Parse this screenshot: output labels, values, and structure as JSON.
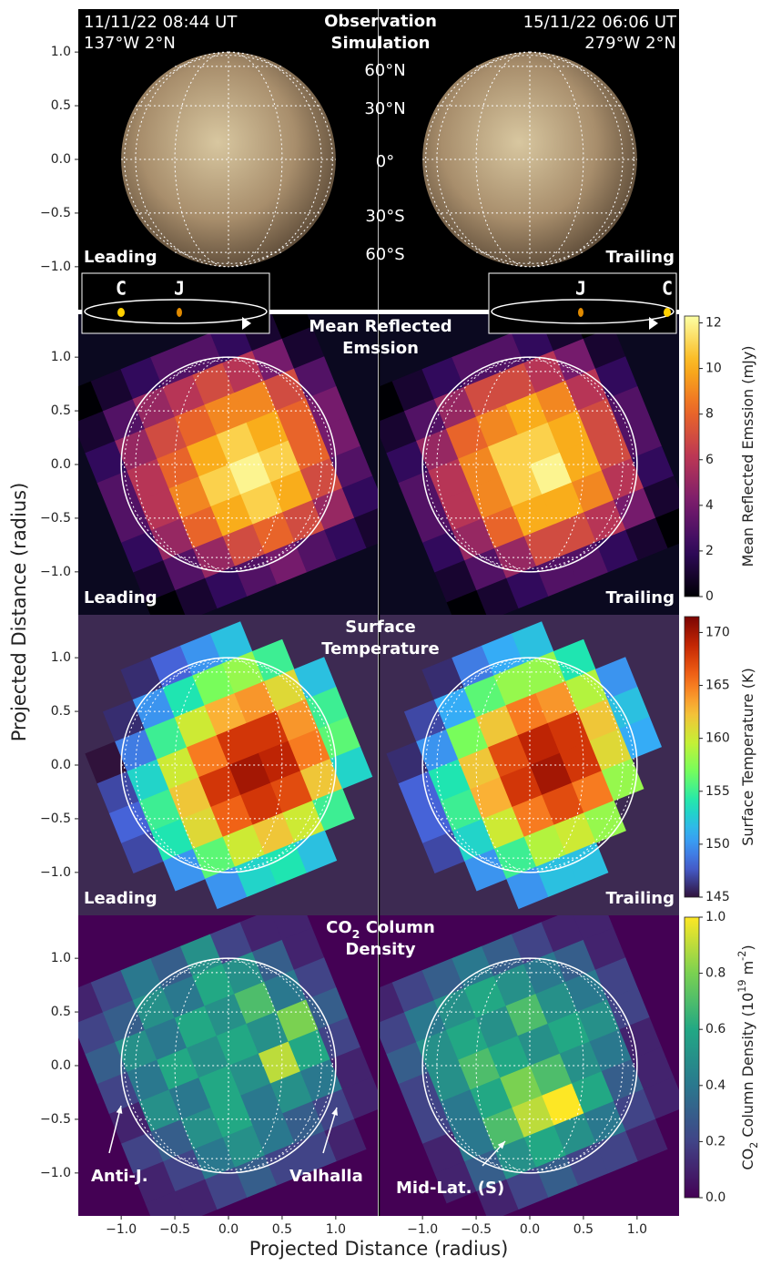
{
  "chart_data": {
    "type": "image-grid",
    "xlabel": "Projected Distance (radius)",
    "ylabel": "Projected Distance (radius)",
    "xlim": [
      -1.4,
      1.4
    ],
    "ylim": [
      -1.4,
      1.4
    ],
    "xticks": [
      {
        "value": -1,
        "label": "−1.0"
      },
      {
        "value": -0.5,
        "label": "−0.5"
      },
      {
        "value": 0,
        "label": "0.0"
      },
      {
        "value": 0.5,
        "label": "0.5"
      },
      {
        "value": 1,
        "label": "1.0"
      }
    ],
    "yticks": [
      {
        "value": -1,
        "label": "−1.0"
      },
      {
        "value": -0.5,
        "label": "−0.5"
      },
      {
        "value": 0,
        "label": "0.0"
      },
      {
        "value": 0.5,
        "label": "0.5"
      },
      {
        "value": 1,
        "label": "1.0"
      }
    ],
    "rows": [
      {
        "type": "image",
        "background": "#000000",
        "title_lines": [
          [
            {
              "text": "Observation"
            }
          ],
          [
            {
              "text": "Simulation"
            }
          ]
        ],
        "left_time": "11/11/22 08:44 UT",
        "left_coords": "137°W 2°N",
        "right_time": "15/11/22 06:06 UT",
        "right_coords": "279°W 2°N",
        "latitude_labels": [
          "60°N",
          "30°N",
          "0°",
          "30°S",
          "60°S"
        ],
        "panels": [
          {
            "label": "Leading",
            "inset": [
              "C",
              "J"
            ]
          },
          {
            "label": "Trailing",
            "inset": [
              "J",
              "C"
            ]
          }
        ]
      },
      {
        "type": "heatmap",
        "background": "#0b0920",
        "colormap": "inferno",
        "title_lines": [
          [
            {
              "text": "Mean Reflected"
            }
          ],
          [
            {
              "text": "Emssion"
            }
          ]
        ],
        "colorbar": {
          "label_parts": [
            {
              "text": "Mean Reflected Emssion (mJy)"
            }
          ],
          "lim": [
            0,
            12.3
          ],
          "ticks": [
            0,
            2,
            4,
            6,
            8,
            10,
            12
          ]
        },
        "panels": [
          {
            "label": "Leading",
            "values": [
              [
                0,
                1,
                2,
                3,
                3,
                2,
                1,
                0
              ],
              [
                1,
                3,
                5,
                6,
                7,
                6,
                4,
                1
              ],
              [
                2,
                5,
                7,
                8,
                9,
                9,
                7,
                3
              ],
              [
                3,
                6,
                8,
                10,
                11,
                10,
                8,
                4
              ],
              [
                3,
                6,
                9,
                11,
                12,
                11,
                8,
                4
              ],
              [
                2,
                5,
                8,
                10,
                11,
                10,
                7,
                3
              ],
              [
                1,
                3,
                5,
                7,
                8,
                7,
                5,
                2
              ],
              [
                0,
                1,
                2,
                3,
                4,
                3,
                2,
                1
              ]
            ]
          },
          {
            "label": "Trailing",
            "values": [
              [
                0,
                1,
                2,
                3,
                3,
                2,
                1,
                0
              ],
              [
                1,
                3,
                5,
                7,
                7,
                6,
                4,
                1
              ],
              [
                2,
                5,
                8,
                9,
                10,
                9,
                6,
                2
              ],
              [
                3,
                6,
                9,
                11,
                11,
                10,
                7,
                3
              ],
              [
                3,
                6,
                9,
                11,
                12,
                10,
                7,
                3
              ],
              [
                2,
                5,
                8,
                10,
                10,
                9,
                6,
                2
              ],
              [
                1,
                3,
                5,
                7,
                7,
                6,
                4,
                1
              ],
              [
                0,
                1,
                2,
                3,
                3,
                2,
                1,
                0
              ]
            ]
          }
        ]
      },
      {
        "type": "heatmap",
        "background": "#3d2a52",
        "colormap": "turbo",
        "title_lines": [
          [
            {
              "text": "Surface"
            }
          ],
          [
            {
              "text": "Temperature"
            }
          ]
        ],
        "colorbar": {
          "label_parts": [
            {
              "text": "Surface Temperature (K)"
            }
          ],
          "lim": [
            145,
            171.5
          ],
          "ticks": [
            145,
            150,
            155,
            160,
            165,
            170
          ]
        },
        "panels": [
          {
            "label": "Leading",
            "values": [
              [
                null,
                null,
                146,
                148,
                150,
                152,
                null,
                null
              ],
              [
                null,
                146,
                150,
                154,
                157,
                158,
                155,
                null
              ],
              [
                145,
                149,
                155,
                160,
                163,
                164,
                161,
                152
              ],
              [
                147,
                153,
                160,
                165,
                168,
                168,
                164,
                155
              ],
              [
                148,
                155,
                162,
                168,
                170,
                169,
                165,
                156
              ],
              [
                147,
                154,
                161,
                166,
                168,
                167,
                162,
                153
              ],
              [
                null,
                150,
                156,
                160,
                162,
                160,
                155,
                null
              ],
              [
                null,
                null,
                150,
                153,
                154,
                152,
                null,
                null
              ]
            ]
          },
          {
            "label": "Trailing",
            "values": [
              [
                null,
                null,
                146,
                149,
                151,
                152,
                null,
                null
              ],
              [
                null,
                147,
                151,
                156,
                158,
                158,
                154,
                null
              ],
              [
                146,
                150,
                157,
                162,
                165,
                164,
                159,
                150
              ],
              [
                148,
                154,
                162,
                167,
                169,
                168,
                162,
                152
              ],
              [
                148,
                155,
                163,
                168,
                170,
                168,
                161,
                151
              ],
              [
                147,
                153,
                160,
                165,
                167,
                165,
                158,
                null
              ],
              [
                null,
                150,
                155,
                159,
                160,
                158,
                null,
                null
              ],
              [
                null,
                null,
                150,
                152,
                152,
                null,
                null,
                null
              ]
            ]
          }
        ]
      },
      {
        "type": "heatmap",
        "background": "#440154",
        "colormap": "viridis",
        "title_lines": [
          [
            {
              "text": "CO"
            },
            {
              "text": "2",
              "sub": true
            },
            {
              "text": " Column"
            }
          ],
          [
            {
              "text": "Density"
            }
          ]
        ],
        "colorbar": {
          "label_parts": [
            {
              "text": "CO"
            },
            {
              "text": "2",
              "sub": true
            },
            {
              "text": " Column Density (10"
            },
            {
              "text": "19",
              "sup": true
            },
            {
              "text": " m"
            },
            {
              "text": "-2",
              "sup": true
            },
            {
              "text": ")"
            }
          ],
          "lim": [
            0,
            1
          ],
          "ticks": [
            {
              "value": 0,
              "label": "0.0"
            },
            {
              "value": 0.2,
              "label": "0.2"
            },
            {
              "value": 0.4,
              "label": "0.4"
            },
            {
              "value": 0.6,
              "label": "0.6"
            },
            {
              "value": 0.8,
              "label": "0.8"
            },
            {
              "value": 1,
              "label": "1.0"
            }
          ]
        },
        "annotations": [
          "Anti-J.",
          "Valhalla",
          "Mid-Lat. (S)"
        ],
        "panels": [
          {
            "label": "",
            "values": [
              [
                0.1,
                0.2,
                0.4,
                0.3,
                0.5,
                0.2,
                0.1,
                0.1
              ],
              [
                0.2,
                0.3,
                0.5,
                0.4,
                0.6,
                0.5,
                0.3,
                0.1
              ],
              [
                0.3,
                0.5,
                0.4,
                0.6,
                0.5,
                0.7,
                0.4,
                0.2
              ],
              [
                0.2,
                0.4,
                0.6,
                0.5,
                0.6,
                0.5,
                0.8,
                0.3
              ],
              [
                0.1,
                0.5,
                0.4,
                0.6,
                0.5,
                0.9,
                0.6,
                0.2
              ],
              [
                0.2,
                0.3,
                0.5,
                0.6,
                0.4,
                0.5,
                0.4,
                0.1
              ],
              [
                0.1,
                0.2,
                0.4,
                0.5,
                0.4,
                0.3,
                0.2,
                0.1
              ],
              [
                0.1,
                0.1,
                0.2,
                0.3,
                0.2,
                0.2,
                0.1,
                0.0
              ]
            ]
          },
          {
            "label": "",
            "values": [
              [
                0.1,
                0.2,
                0.3,
                0.4,
                0.3,
                0.2,
                0.1,
                0.1
              ],
              [
                0.2,
                0.4,
                0.5,
                0.6,
                0.5,
                0.4,
                0.3,
                0.1
              ],
              [
                0.3,
                0.5,
                0.6,
                0.5,
                0.7,
                0.5,
                0.4,
                0.2
              ],
              [
                0.2,
                0.5,
                0.7,
                0.6,
                0.5,
                0.6,
                0.5,
                0.2
              ],
              [
                0.2,
                0.4,
                0.6,
                0.8,
                0.7,
                0.5,
                0.4,
                0.1
              ],
              [
                0.1,
                0.4,
                0.7,
                0.9,
                1.0,
                0.6,
                0.3,
                0.1
              ],
              [
                0.1,
                0.3,
                0.5,
                0.6,
                0.5,
                0.4,
                0.2,
                0.1
              ],
              [
                0.0,
                0.1,
                0.2,
                0.3,
                0.2,
                0.2,
                0.1,
                0.0
              ]
            ]
          }
        ]
      }
    ]
  }
}
